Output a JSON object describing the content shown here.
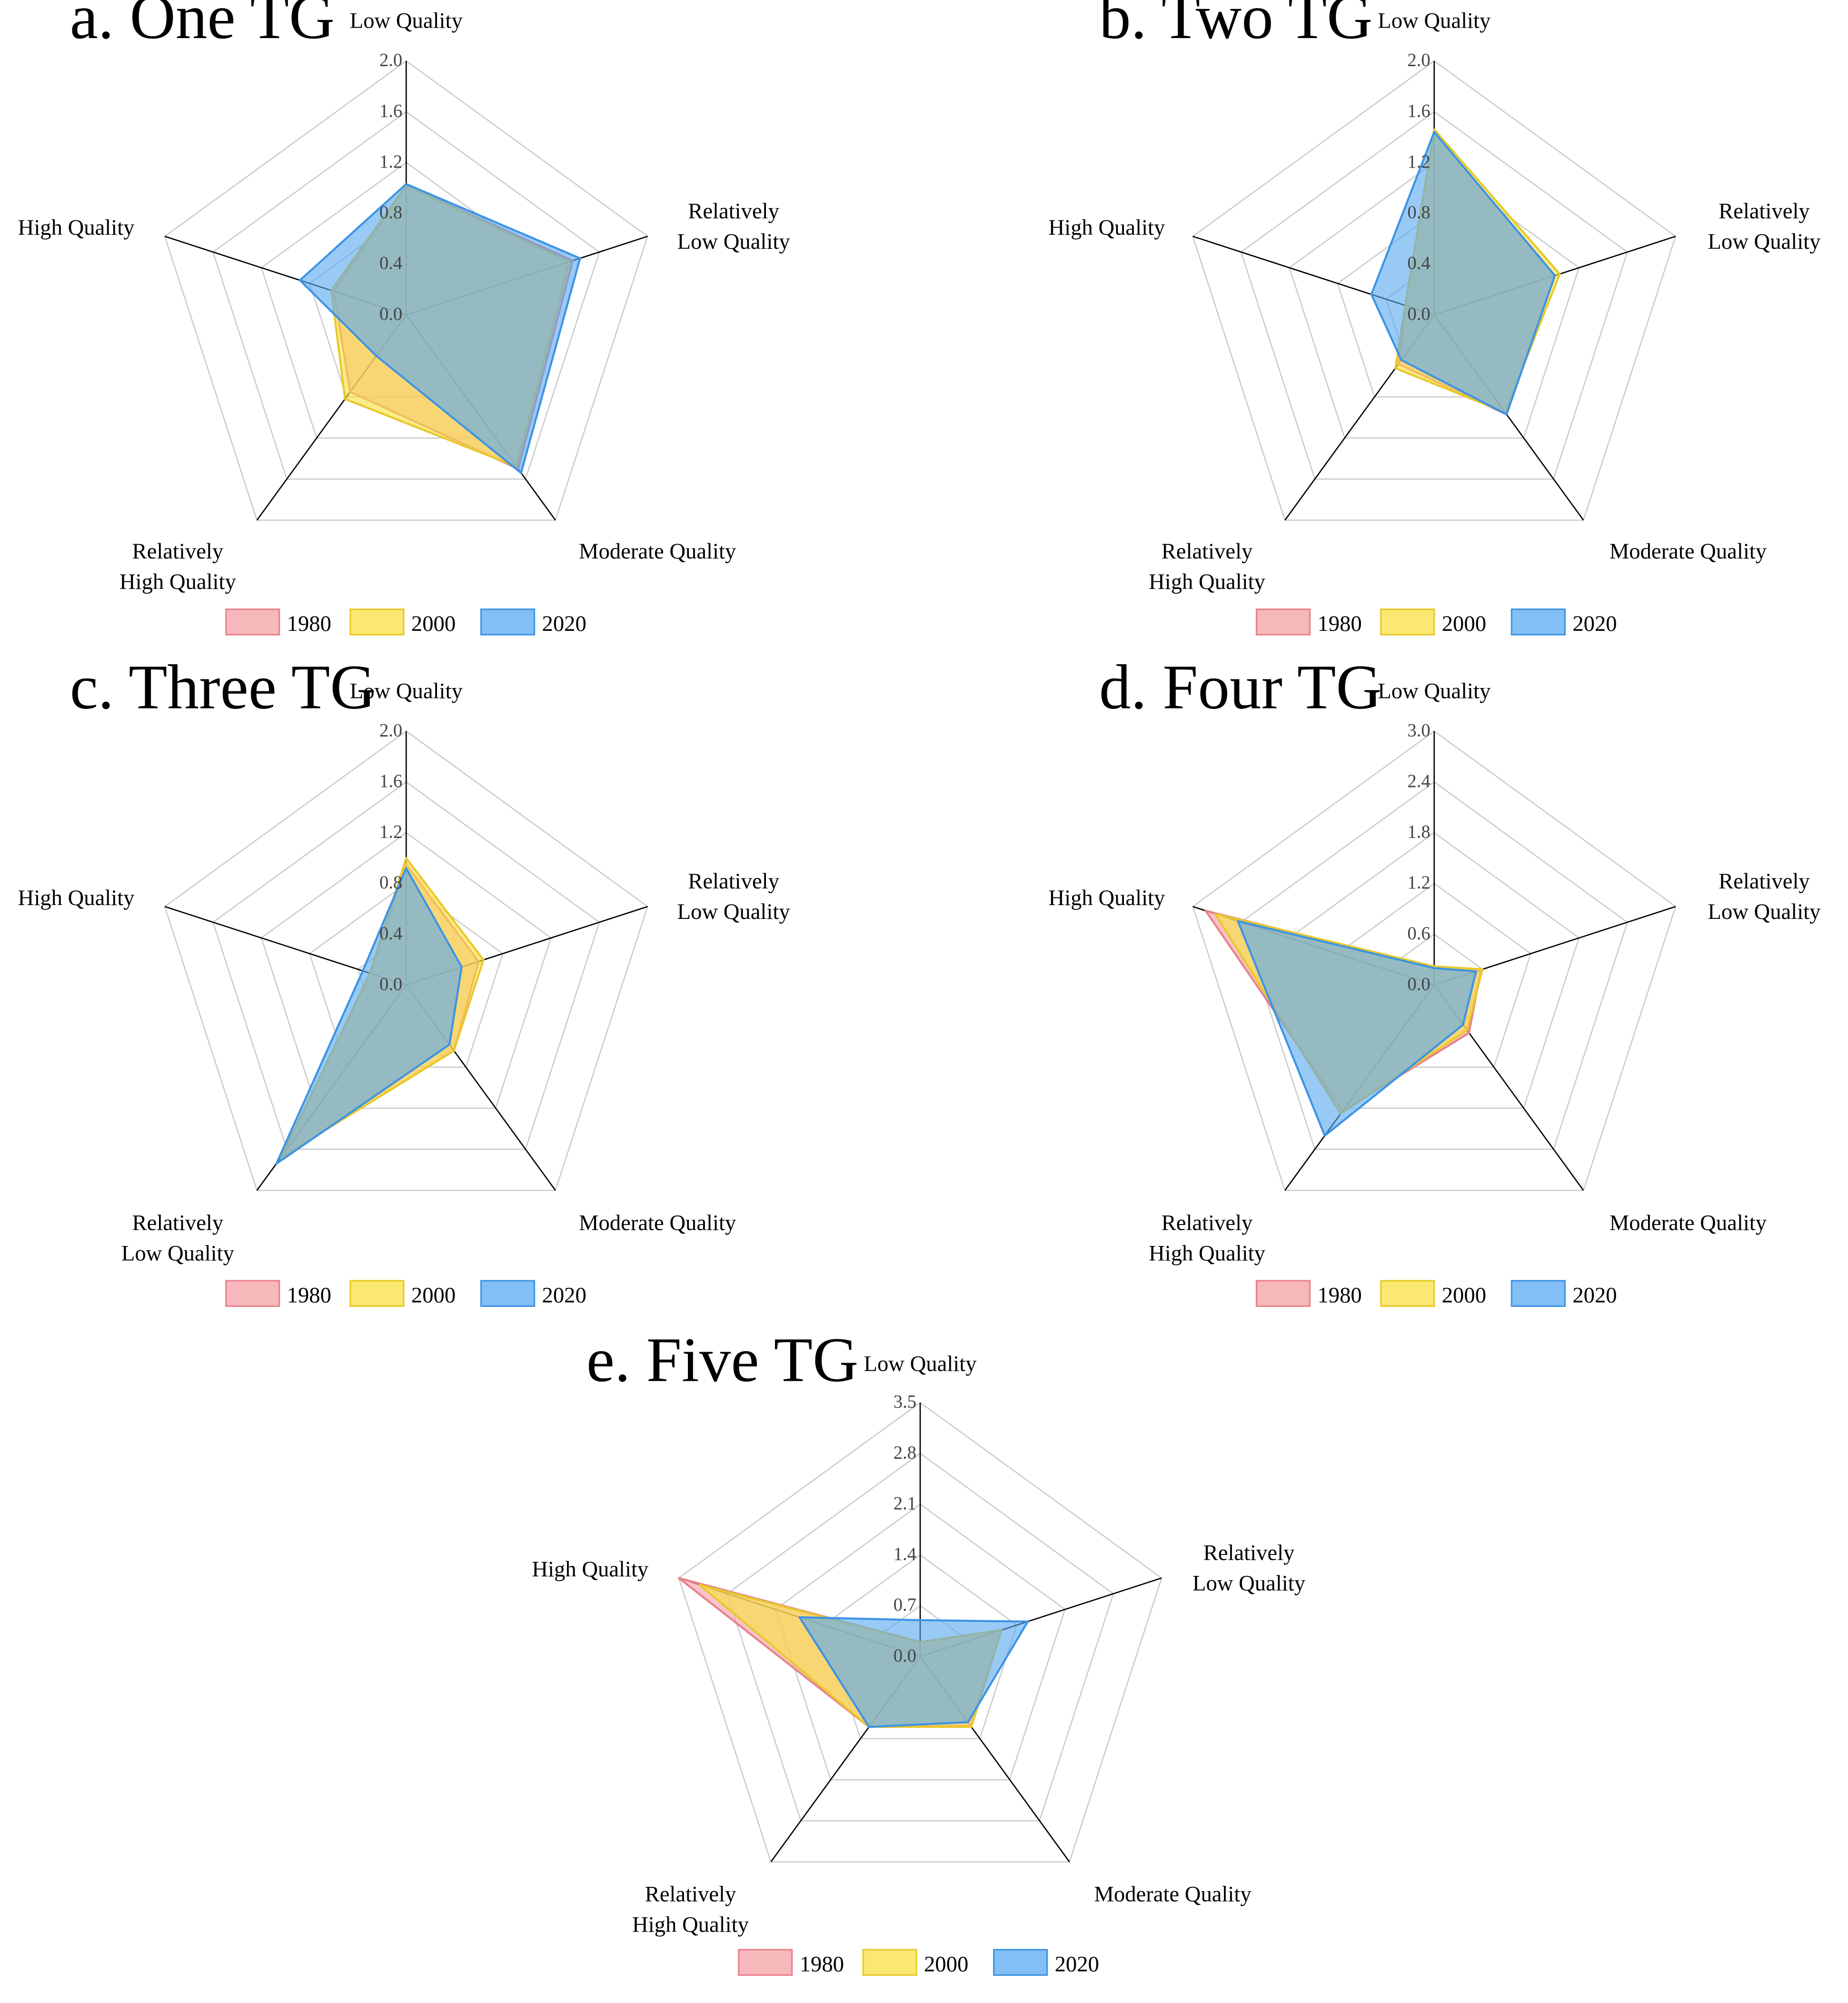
{
  "legend_years": [
    "1980",
    "2000",
    "2020"
  ],
  "colors": {
    "1980": {
      "fill": "#f4a0a6",
      "stroke": "#e8828a"
    },
    "2000": {
      "fill": "#f8e040",
      "stroke": "#e8c82a"
    },
    "2020": {
      "fill": "#5aaaf0",
      "stroke": "#3c94e4"
    },
    "grid": "#c8c8c8",
    "spoke": "#000000"
  },
  "chart_data": [
    {
      "type": "radar",
      "title": "a. One TG",
      "axes": [
        "Low Quality",
        "Relatively\nLow Quality",
        "Moderate Quality",
        "Relatively\nHigh Quality",
        "High Quality"
      ],
      "ticks": [
        "0.0",
        "0.4",
        "0.8",
        "1.2",
        "1.6",
        "2.0"
      ],
      "rmax": 2.0,
      "series": [
        {
          "name": "1980",
          "values": [
            1.02,
            1.38,
            1.5,
            0.75,
            0.6
          ]
        },
        {
          "name": "2000",
          "values": [
            1.02,
            1.35,
            1.48,
            0.82,
            0.62
          ]
        },
        {
          "name": "2020",
          "values": [
            1.03,
            1.44,
            1.54,
            0.4,
            0.88
          ]
        }
      ]
    },
    {
      "type": "radar",
      "title": "b. Two TG",
      "axes": [
        "Low Quality",
        "Relatively\nLow Quality",
        "Moderate Quality",
        "Relatively\nHigh Quality",
        "High Quality"
      ],
      "ticks": [
        "0.0",
        "0.4",
        "0.8",
        "1.2",
        "1.6",
        "2.0"
      ],
      "rmax": 2.0,
      "series": [
        {
          "name": "1980",
          "values": [
            1.44,
            1.0,
            0.97,
            0.48,
            0.24
          ]
        },
        {
          "name": "2000",
          "values": [
            1.46,
            1.04,
            0.95,
            0.52,
            0.24
          ]
        },
        {
          "name": "2020",
          "values": [
            1.44,
            1.0,
            0.97,
            0.44,
            0.52
          ]
        }
      ]
    },
    {
      "type": "radar",
      "title": "c. Three TG",
      "axes": [
        "Low Quality",
        "Relatively\nLow Quality",
        "Moderate Quality",
        "Relatively\nLow Quality",
        "High Quality"
      ],
      "ticks": [
        "0.0",
        "0.4",
        "0.8",
        "1.2",
        "1.6",
        "2.0"
      ],
      "rmax": 2.0,
      "series": [
        {
          "name": "1980",
          "values": [
            0.95,
            0.6,
            0.64,
            1.68,
            0.3
          ]
        },
        {
          "name": "2000",
          "values": [
            1.0,
            0.64,
            0.64,
            1.68,
            0.3
          ]
        },
        {
          "name": "2020",
          "values": [
            0.92,
            0.46,
            0.58,
            1.74,
            0.36
          ]
        }
      ]
    },
    {
      "type": "radar",
      "title": "d. Four TG",
      "axes": [
        "Low Quality",
        "Relatively\nLow Quality",
        "Moderate Quality",
        "Relatively\nHigh Quality",
        "High Quality"
      ],
      "ticks": [
        "0.0",
        "0.6",
        "1.2",
        "1.8",
        "2.4",
        "3.0"
      ],
      "rmax": 3.0,
      "series": [
        {
          "name": "1980",
          "values": [
            0.2,
            0.58,
            0.7,
            1.84,
            2.84
          ]
        },
        {
          "name": "2000",
          "values": [
            0.22,
            0.6,
            0.66,
            1.88,
            2.72
          ]
        },
        {
          "name": "2020",
          "values": [
            0.2,
            0.52,
            0.58,
            2.2,
            2.44
          ]
        }
      ]
    },
    {
      "type": "radar",
      "title": "e. Five TG",
      "axes": [
        "Low Quality",
        "Relatively\nLow Quality",
        "Moderate Quality",
        "Relatively\nHigh Quality",
        "High Quality"
      ],
      "ticks": [
        "0.0",
        "0.7",
        "1.4",
        "2.1",
        "2.8",
        "3.5"
      ],
      "rmax": 3.5,
      "series": [
        {
          "name": "1980",
          "values": [
            0.2,
            1.18,
            1.18,
            1.2,
            3.5
          ]
        },
        {
          "name": "2000",
          "values": [
            0.2,
            1.18,
            1.2,
            1.2,
            3.2
          ]
        },
        {
          "name": "2020",
          "values": [
            0.5,
            1.56,
            1.12,
            1.2,
            1.75
          ]
        }
      ]
    }
  ]
}
